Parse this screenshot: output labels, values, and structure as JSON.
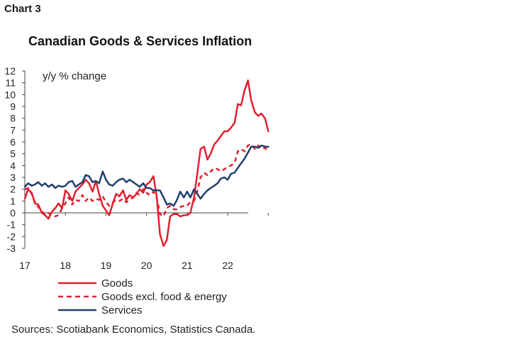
{
  "header": {
    "chart_label": "Chart 3"
  },
  "chart_data": {
    "type": "line",
    "title": "Canadian Goods & Services Inflation",
    "units_label": "y/y % change",
    "xlabel": "",
    "ylabel": "",
    "ylim": [
      -3,
      12
    ],
    "yticks": [
      -3,
      -2,
      -1,
      0,
      1,
      2,
      3,
      4,
      5,
      6,
      7,
      8,
      9,
      10,
      11,
      12
    ],
    "x_tick_labels": [
      "17",
      "18",
      "19",
      "20",
      "21",
      "22"
    ],
    "x_range": [
      2017.0,
      2023.0
    ],
    "grid": false,
    "legend_position": "bottom",
    "series": [
      {
        "name": "Goods",
        "color": "#e0202f",
        "style": "solid",
        "points": [
          [
            2017.0,
            1.2
          ],
          [
            2017.08,
            2.0
          ],
          [
            2017.17,
            1.7
          ],
          [
            2017.25,
            0.8
          ],
          [
            2017.33,
            0.7
          ],
          [
            2017.42,
            0.0
          ],
          [
            2017.5,
            -0.2
          ],
          [
            2017.58,
            -0.5
          ],
          [
            2017.67,
            0.1
          ],
          [
            2017.75,
            0.4
          ],
          [
            2017.83,
            0.8
          ],
          [
            2017.92,
            0.4
          ],
          [
            2018.0,
            1.9
          ],
          [
            2018.08,
            1.6
          ],
          [
            2018.17,
            1.0
          ],
          [
            2018.25,
            1.8
          ],
          [
            2018.33,
            2.1
          ],
          [
            2018.42,
            2.4
          ],
          [
            2018.5,
            2.8
          ],
          [
            2018.58,
            2.5
          ],
          [
            2018.67,
            1.8
          ],
          [
            2018.75,
            2.7
          ],
          [
            2018.83,
            1.6
          ],
          [
            2018.92,
            0.6
          ],
          [
            2019.0,
            0.2
          ],
          [
            2019.08,
            -0.2
          ],
          [
            2019.17,
            0.8
          ],
          [
            2019.25,
            1.6
          ],
          [
            2019.33,
            1.4
          ],
          [
            2019.42,
            1.9
          ],
          [
            2019.5,
            1.1
          ],
          [
            2019.58,
            1.5
          ],
          [
            2019.67,
            1.3
          ],
          [
            2019.75,
            1.6
          ],
          [
            2019.83,
            2.0
          ],
          [
            2019.92,
            1.7
          ],
          [
            2020.0,
            2.4
          ],
          [
            2020.08,
            2.6
          ],
          [
            2020.17,
            3.1
          ],
          [
            2020.25,
            1.4
          ],
          [
            2020.33,
            -1.8
          ],
          [
            2020.42,
            -2.8
          ],
          [
            2020.5,
            -2.3
          ],
          [
            2020.58,
            -0.3
          ],
          [
            2020.67,
            -0.1
          ],
          [
            2020.75,
            -0.1
          ],
          [
            2020.83,
            -0.3
          ],
          [
            2020.92,
            -0.2
          ],
          [
            2021.0,
            -0.2
          ],
          [
            2021.08,
            0.0
          ],
          [
            2021.17,
            1.3
          ],
          [
            2021.25,
            3.3
          ],
          [
            2021.33,
            5.4
          ],
          [
            2021.42,
            5.6
          ],
          [
            2021.5,
            4.5
          ],
          [
            2021.58,
            5.0
          ],
          [
            2021.67,
            5.8
          ],
          [
            2021.75,
            6.1
          ],
          [
            2021.83,
            6.5
          ],
          [
            2021.92,
            6.9
          ],
          [
            2022.0,
            6.9
          ],
          [
            2022.08,
            7.2
          ],
          [
            2022.17,
            7.6
          ],
          [
            2022.25,
            9.2
          ],
          [
            2022.33,
            9.1
          ],
          [
            2022.42,
            10.4
          ],
          [
            2022.5,
            11.2
          ],
          [
            2022.58,
            9.5
          ],
          [
            2022.67,
            8.5
          ],
          [
            2022.75,
            8.2
          ],
          [
            2022.83,
            8.4
          ],
          [
            2022.92,
            8.0
          ],
          [
            2023.0,
            6.9
          ]
        ]
      },
      {
        "name": "Goods excl. food & energy",
        "color": "#e0202f",
        "style": "dashed",
        "points": [
          [
            2017.0,
            2.0
          ],
          [
            2017.08,
            2.1
          ],
          [
            2017.17,
            1.6
          ],
          [
            2017.25,
            0.9
          ],
          [
            2017.33,
            0.5
          ],
          [
            2017.42,
            0.2
          ],
          [
            2017.5,
            -0.2
          ],
          [
            2017.58,
            0.0
          ],
          [
            2017.67,
            -0.2
          ],
          [
            2017.75,
            -0.3
          ],
          [
            2017.83,
            -0.2
          ],
          [
            2017.92,
            0.4
          ],
          [
            2018.0,
            0.8
          ],
          [
            2018.08,
            1.3
          ],
          [
            2018.17,
            0.7
          ],
          [
            2018.25,
            1.1
          ],
          [
            2018.33,
            1.0
          ],
          [
            2018.42,
            1.5
          ],
          [
            2018.5,
            1.0
          ],
          [
            2018.58,
            1.3
          ],
          [
            2018.67,
            1.0
          ],
          [
            2018.75,
            1.2
          ],
          [
            2018.83,
            1.1
          ],
          [
            2018.92,
            1.4
          ],
          [
            2019.0,
            0.9
          ],
          [
            2019.08,
            0.6
          ],
          [
            2019.17,
            0.9
          ],
          [
            2019.25,
            1.1
          ],
          [
            2019.33,
            1.0
          ],
          [
            2019.42,
            1.2
          ],
          [
            2019.5,
            0.9
          ],
          [
            2019.58,
            1.1
          ],
          [
            2019.67,
            1.3
          ],
          [
            2019.75,
            1.7
          ],
          [
            2019.83,
            1.5
          ],
          [
            2019.92,
            2.0
          ],
          [
            2020.0,
            1.7
          ],
          [
            2020.08,
            1.5
          ],
          [
            2020.17,
            1.8
          ],
          [
            2020.25,
            1.3
          ],
          [
            2020.33,
            -0.1
          ],
          [
            2020.42,
            -0.3
          ],
          [
            2020.5,
            0.4
          ],
          [
            2020.58,
            0.6
          ],
          [
            2020.67,
            0.3
          ],
          [
            2020.75,
            0.3
          ],
          [
            2020.83,
            0.5
          ],
          [
            2020.92,
            0.6
          ],
          [
            2021.0,
            0.6
          ],
          [
            2021.08,
            0.9
          ],
          [
            2021.17,
            1.0
          ],
          [
            2021.25,
            1.8
          ],
          [
            2021.33,
            3.0
          ],
          [
            2021.42,
            3.4
          ],
          [
            2021.5,
            3.2
          ],
          [
            2021.58,
            3.5
          ],
          [
            2021.67,
            3.8
          ],
          [
            2021.75,
            3.7
          ],
          [
            2021.83,
            3.5
          ],
          [
            2021.92,
            3.7
          ],
          [
            2022.0,
            3.9
          ],
          [
            2022.08,
            4.0
          ],
          [
            2022.17,
            4.2
          ],
          [
            2022.25,
            5.2
          ],
          [
            2022.33,
            5.4
          ],
          [
            2022.42,
            5.2
          ],
          [
            2022.5,
            5.7
          ],
          [
            2022.58,
            5.8
          ],
          [
            2022.67,
            5.4
          ],
          [
            2022.75,
            5.7
          ],
          [
            2022.83,
            5.4
          ],
          [
            2022.92,
            5.5
          ],
          [
            2023.0,
            5.2
          ]
        ]
      },
      {
        "name": "Services",
        "color": "#1f3f6e",
        "style": "solid",
        "points": [
          [
            2017.0,
            2.2
          ],
          [
            2017.08,
            2.5
          ],
          [
            2017.17,
            2.3
          ],
          [
            2017.25,
            2.4
          ],
          [
            2017.33,
            2.6
          ],
          [
            2017.42,
            2.3
          ],
          [
            2017.5,
            2.5
          ],
          [
            2017.58,
            2.2
          ],
          [
            2017.67,
            2.4
          ],
          [
            2017.75,
            2.1
          ],
          [
            2017.83,
            2.3
          ],
          [
            2017.92,
            2.2
          ],
          [
            2018.0,
            2.3
          ],
          [
            2018.08,
            2.6
          ],
          [
            2018.17,
            2.7
          ],
          [
            2018.25,
            2.2
          ],
          [
            2018.33,
            2.4
          ],
          [
            2018.42,
            2.6
          ],
          [
            2018.5,
            3.2
          ],
          [
            2018.58,
            3.1
          ],
          [
            2018.67,
            2.6
          ],
          [
            2018.75,
            2.7
          ],
          [
            2018.83,
            2.5
          ],
          [
            2018.92,
            3.5
          ],
          [
            2019.0,
            2.8
          ],
          [
            2019.08,
            2.4
          ],
          [
            2019.17,
            2.3
          ],
          [
            2019.25,
            2.6
          ],
          [
            2019.33,
            2.8
          ],
          [
            2019.42,
            2.9
          ],
          [
            2019.5,
            2.6
          ],
          [
            2019.58,
            2.8
          ],
          [
            2019.67,
            2.6
          ],
          [
            2019.75,
            2.4
          ],
          [
            2019.83,
            2.2
          ],
          [
            2019.92,
            2.5
          ],
          [
            2020.0,
            2.1
          ],
          [
            2020.08,
            2.1
          ],
          [
            2020.17,
            1.9
          ],
          [
            2020.25,
            1.9
          ],
          [
            2020.33,
            1.9
          ],
          [
            2020.42,
            1.3
          ],
          [
            2020.5,
            0.7
          ],
          [
            2020.58,
            0.8
          ],
          [
            2020.67,
            0.6
          ],
          [
            2020.75,
            1.1
          ],
          [
            2020.83,
            1.8
          ],
          [
            2020.92,
            1.3
          ],
          [
            2021.0,
            1.8
          ],
          [
            2021.08,
            1.3
          ],
          [
            2021.17,
            2.0
          ],
          [
            2021.25,
            1.6
          ],
          [
            2021.33,
            1.2
          ],
          [
            2021.42,
            1.6
          ],
          [
            2021.5,
            1.9
          ],
          [
            2021.58,
            2.1
          ],
          [
            2021.67,
            2.3
          ],
          [
            2021.75,
            2.5
          ],
          [
            2021.83,
            2.9
          ],
          [
            2021.92,
            3.0
          ],
          [
            2022.0,
            2.8
          ],
          [
            2022.08,
            3.3
          ],
          [
            2022.17,
            3.4
          ],
          [
            2022.25,
            3.8
          ],
          [
            2022.33,
            4.2
          ],
          [
            2022.42,
            4.6
          ],
          [
            2022.5,
            5.1
          ],
          [
            2022.58,
            5.6
          ],
          [
            2022.67,
            5.6
          ],
          [
            2022.75,
            5.5
          ],
          [
            2022.83,
            5.7
          ],
          [
            2022.92,
            5.6
          ],
          [
            2023.0,
            5.6
          ]
        ]
      }
    ]
  },
  "footer": {
    "source": "Sources: Scotiabank Economics, Statistics Canada."
  }
}
